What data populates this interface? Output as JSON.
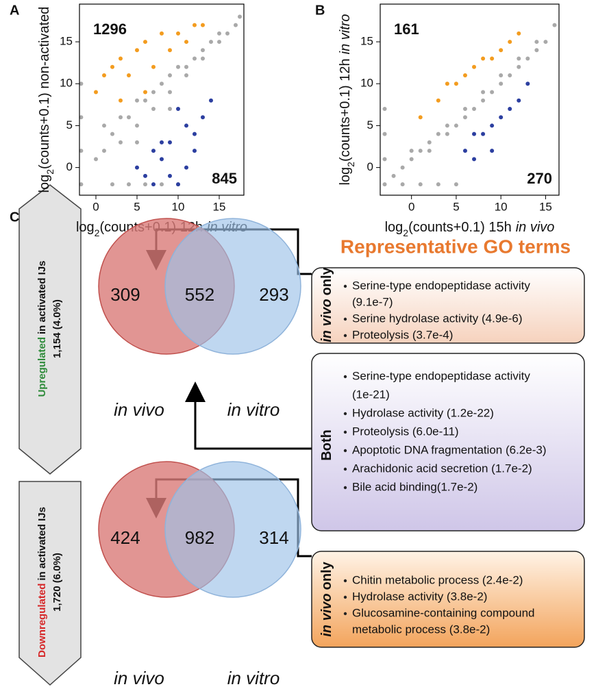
{
  "panel_labels": [
    "A",
    "B",
    "C"
  ],
  "chart_data": [
    {
      "type": "scatter",
      "xlabel": {
        "text": "log",
        "sub": "2",
        "rest": "(counts+0.1) 12h",
        "em": "in vitro"
      },
      "ylabel": {
        "text": "log",
        "sub": "2",
        "rest": "(counts+0.1) non-activated"
      },
      "xlim": [
        -2,
        18
      ],
      "ylim": [
        -3.3,
        19.5
      ],
      "xticks": [
        0,
        5,
        10,
        15
      ],
      "yticks": [
        0,
        5,
        10,
        15
      ],
      "annotations": [
        1296,
        845
      ],
      "series": [
        {
          "color": "#a9a9a9",
          "x": [
            -1.8,
            -1.8,
            -1.8,
            -1.8,
            0,
            1,
            2,
            3,
            4,
            5,
            6,
            7,
            8,
            9,
            10,
            11,
            12,
            13,
            14,
            15,
            16,
            17,
            17.5,
            2,
            4,
            6,
            8,
            10,
            3,
            5,
            7,
            9,
            11,
            13,
            15,
            1,
            5,
            9
          ],
          "y": [
            -2,
            2,
            6,
            10,
            1,
            2,
            4,
            3,
            6,
            5,
            8,
            7,
            10,
            9,
            12,
            11,
            13,
            13,
            15,
            15,
            16,
            17,
            18,
            -2,
            -2,
            -2,
            -2,
            -2,
            6,
            8,
            9,
            11,
            12,
            14,
            16,
            5,
            3,
            7
          ]
        },
        {
          "color": "#f39c1f",
          "x": [
            0,
            1,
            2,
            3,
            4,
            5,
            6,
            7,
            8,
            9,
            10,
            11,
            12,
            13,
            3,
            6
          ],
          "y": [
            9,
            11,
            12,
            13,
            11,
            14,
            15,
            12,
            16,
            14,
            16,
            15,
            17,
            17,
            8,
            9
          ]
        },
        {
          "color": "#2c3fa0",
          "x": [
            5,
            6,
            7,
            8,
            9,
            10,
            11,
            12,
            13,
            14,
            7,
            9,
            11,
            8,
            12,
            10
          ],
          "y": [
            0,
            -1,
            2,
            1,
            3,
            -2,
            5,
            4,
            6,
            8,
            -2,
            -1,
            0,
            3,
            2,
            7
          ]
        }
      ]
    },
    {
      "type": "scatter",
      "xlabel": {
        "text": "log",
        "sub": "2",
        "rest": "(counts+0.1) 15h",
        "em": "in vivo"
      },
      "ylabel": {
        "text": "log",
        "sub": "2",
        "rest": "(counts+0.1) 12h",
        "em": "in vitro"
      },
      "xlim": [
        -3.5,
        16.5
      ],
      "ylim": [
        -3.3,
        19.5
      ],
      "xticks": [
        0,
        5,
        10,
        15
      ],
      "yticks": [
        0,
        5,
        10,
        15
      ],
      "annotations": [
        161,
        270
      ],
      "series": [
        {
          "color": "#a9a9a9",
          "x": [
            -3,
            -3,
            -3,
            -3,
            -2,
            -1,
            0,
            1,
            2,
            3,
            4,
            5,
            6,
            7,
            8,
            9,
            10,
            11,
            12,
            13,
            14,
            15,
            16,
            -1,
            1,
            3,
            5,
            0,
            2,
            4,
            6,
            8,
            10,
            12,
            14
          ],
          "y": [
            -2,
            1,
            4,
            7,
            -1,
            0,
            1,
            2,
            2,
            4,
            4,
            5,
            6,
            7,
            8,
            9,
            10,
            11,
            12,
            13,
            14,
            15,
            17,
            -2,
            -2,
            -2,
            -2,
            2,
            3,
            5,
            7,
            9,
            11,
            13,
            15
          ]
        },
        {
          "color": "#f39c1f",
          "x": [
            1,
            3,
            4,
            5,
            6,
            7,
            8,
            9,
            10,
            11,
            12
          ],
          "y": [
            6,
            8,
            10,
            10,
            11,
            12,
            13,
            13,
            14,
            15,
            16
          ]
        },
        {
          "color": "#2c3fa0",
          "x": [
            6,
            7,
            8,
            9,
            10,
            11,
            12,
            13,
            7,
            9
          ],
          "y": [
            2,
            4,
            4,
            5,
            6,
            7,
            8,
            10,
            1,
            2
          ]
        }
      ]
    },
    {
      "type": "venn",
      "sets": [
        {
          "name": "in vivo",
          "color": "#d97b78"
        },
        {
          "name": "in vitro",
          "color": "#9cc2e8"
        }
      ],
      "values": [
        309,
        552,
        293
      ],
      "side_label": {
        "highlight": "Upregulated",
        "highlight_color": "#2e8b3a",
        "rest": "in activated IJs",
        "count": "1,154 (4.0%)"
      }
    },
    {
      "type": "venn",
      "sets": [
        {
          "name": "in vivo",
          "color": "#d97b78"
        },
        {
          "name": "in vitro",
          "color": "#9cc2e8"
        }
      ],
      "values": [
        424,
        982,
        314
      ],
      "side_label": {
        "highlight": "Downregulated",
        "highlight_color": "#d62728",
        "rest": "in activated IJs",
        "count": "1,720 (6.0%)"
      }
    }
  ],
  "go_terms": {
    "title": "Representative GO terms",
    "boxes": [
      {
        "label_em": "in vivo",
        "label": "only",
        "items": [
          [
            "Serine-type endopeptidase activity",
            "(9.1e-7)"
          ],
          [
            "Serine hydrolase activity (4.9e-6)"
          ],
          [
            "Proteolysis (3.7e-4)"
          ]
        ]
      },
      {
        "label": "Both",
        "items": [
          [
            "Serine-type endopeptidase activity",
            "(1e-21)"
          ],
          [
            "Hydrolase activity (1.2e-22)"
          ],
          [
            "Proteolysis (6.0e-11)"
          ],
          [
            "Apoptotic DNA fragmentation (6.2e-3)"
          ],
          [
            "Arachidonic acid secretion (1.7e-2)"
          ],
          [
            "Bile acid binding(1.7e-2)"
          ]
        ]
      },
      {
        "label_em": "in vivo",
        "label": "only",
        "items": [
          [
            "Chitin metabolic process (2.4e-2)"
          ],
          [
            "Hydrolase activity (3.8e-2)"
          ],
          [
            "Glucosamine-containing compound",
            "metabolic process (3.8e-2)"
          ]
        ]
      }
    ]
  }
}
